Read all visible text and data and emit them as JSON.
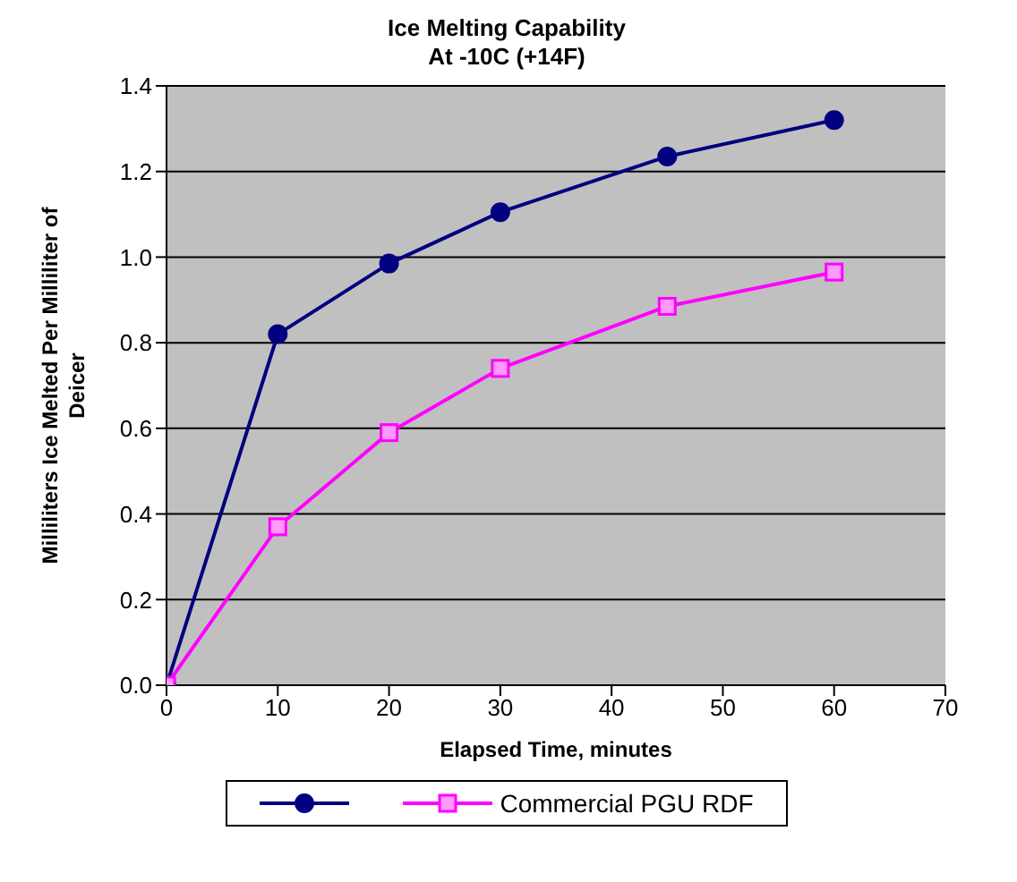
{
  "chart_data": {
    "type": "line",
    "title": "Ice Melting Capability",
    "subtitle": "At -10C (+14F)",
    "xlabel": "Elapsed Time, minutes",
    "ylabel": "Milliliters Ice Melted Per Milliliter of Deicer",
    "x": [
      0,
      10,
      20,
      30,
      45,
      60
    ],
    "series": [
      {
        "color": "#000080",
        "marker": "circle",
        "values": [
          0,
          0.82,
          0.985,
          1.105,
          1.235,
          1.32
        ]
      },
      {
        "name": "Commercial PGU RDF",
        "color": "#ff00ff",
        "marker": "square",
        "values": [
          0,
          0.37,
          0.59,
          0.74,
          0.885,
          0.965
        ]
      }
    ],
    "xlim": [
      0,
      70
    ],
    "xticks": [
      0,
      10,
      20,
      30,
      40,
      50,
      60,
      70
    ],
    "ylim": [
      0,
      1.4
    ],
    "yticks": [
      {
        "value": 0,
        "label": "0.0"
      },
      {
        "value": 0.2,
        "label": "0.2"
      },
      {
        "value": 0.4,
        "label": "0.4"
      },
      {
        "value": 0.6,
        "label": "0.6"
      },
      {
        "value": 0.8,
        "label": "0.8"
      },
      {
        "value": 1,
        "label": "1.0"
      },
      {
        "value": 1.2,
        "label": "1.2"
      },
      {
        "value": 1.4,
        "label": "1.4"
      }
    ],
    "grid": "y",
    "legend": "bottom"
  }
}
